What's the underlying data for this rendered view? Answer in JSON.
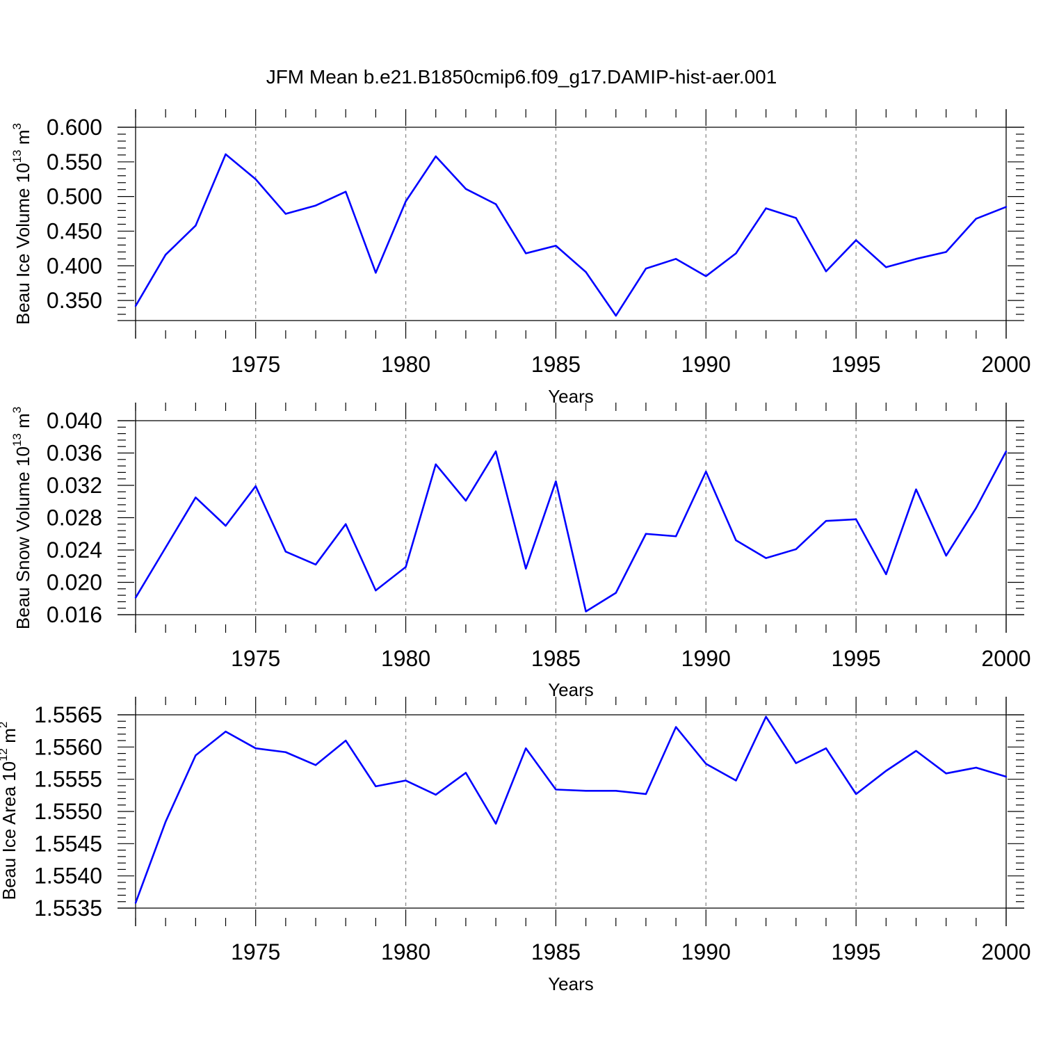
{
  "title": "JFM Mean b.e21.B1850cmip6.f09_g17.DAMIP-hist-aer.001",
  "colors": {
    "line": "#0000ff",
    "axis": "#000000",
    "grid": "#8c8c8c"
  },
  "chart_data": [
    {
      "type": "line",
      "ylabel": "Beau Ice Volume 10",
      "ylabel_exponent": "13",
      "ylabel_unit": " m",
      "ylabel_unit_exponent": "3",
      "xlabel": "Years",
      "xlim": [
        1971,
        2000
      ],
      "ylim": [
        0.321,
        0.6
      ],
      "yticks": [
        0.35,
        0.4,
        0.45,
        0.5,
        0.55,
        0.6
      ],
      "ytick_labels": [
        "0.350",
        "0.400",
        "0.450",
        "0.500",
        "0.550",
        "0.600"
      ],
      "xticks": [
        1975,
        1980,
        1985,
        1990,
        1995,
        2000
      ],
      "xtick_labels": [
        "1975",
        "1980",
        "1985",
        "1990",
        "1995",
        "2000"
      ],
      "grid": "vertical dashed at major x ticks",
      "x": [
        1971,
        1972,
        1973,
        1974,
        1975,
        1976,
        1977,
        1978,
        1979,
        1980,
        1981,
        1982,
        1983,
        1984,
        1985,
        1986,
        1987,
        1988,
        1989,
        1990,
        1991,
        1992,
        1993,
        1994,
        1995,
        1996,
        1997,
        1998,
        1999,
        2000
      ],
      "values": [
        0.342,
        0.416,
        0.458,
        0.561,
        0.525,
        0.475,
        0.487,
        0.507,
        0.39,
        0.493,
        0.558,
        0.511,
        0.489,
        0.418,
        0.429,
        0.391,
        0.328,
        0.396,
        0.41,
        0.385,
        0.418,
        0.483,
        0.469,
        0.392,
        0.437,
        0.398,
        0.41,
        0.42,
        0.468,
        0.485
      ]
    },
    {
      "type": "line",
      "ylabel": "Beau Snow Volume 10",
      "ylabel_exponent": "13",
      "ylabel_unit": " m",
      "ylabel_unit_exponent": "3",
      "xlabel": "Years",
      "xlim": [
        1971,
        2000
      ],
      "ylim": [
        0.016,
        0.04
      ],
      "yticks": [
        0.016,
        0.02,
        0.024,
        0.028,
        0.032,
        0.036,
        0.04
      ],
      "ytick_labels": [
        "0.016",
        "0.020",
        "0.024",
        "0.028",
        "0.032",
        "0.036",
        "0.040"
      ],
      "xticks": [
        1975,
        1980,
        1985,
        1990,
        1995,
        2000
      ],
      "xtick_labels": [
        "1975",
        "1980",
        "1985",
        "1990",
        "1995",
        "2000"
      ],
      "grid": "vertical dashed at major x ticks",
      "x": [
        1971,
        1972,
        1973,
        1974,
        1975,
        1976,
        1977,
        1978,
        1979,
        1980,
        1981,
        1982,
        1983,
        1984,
        1985,
        1986,
        1987,
        1988,
        1989,
        1990,
        1991,
        1992,
        1993,
        1994,
        1995,
        1996,
        1997,
        1998,
        1999,
        2000
      ],
      "values": [
        0.0181,
        0.0243,
        0.0305,
        0.027,
        0.0319,
        0.0238,
        0.0222,
        0.0272,
        0.019,
        0.0219,
        0.0346,
        0.0301,
        0.0362,
        0.0217,
        0.0325,
        0.0164,
        0.0187,
        0.026,
        0.0257,
        0.0337,
        0.0252,
        0.023,
        0.0241,
        0.0276,
        0.0278,
        0.021,
        0.0315,
        0.0233,
        0.0292,
        0.0362
      ]
    },
    {
      "type": "line",
      "ylabel": "Beau Ice Area 10",
      "ylabel_exponent": "12",
      "ylabel_unit": " m",
      "ylabel_unit_exponent": "2",
      "xlabel": "Years",
      "xlim": [
        1971,
        2000
      ],
      "ylim": [
        1.5535,
        1.5565
      ],
      "yticks": [
        1.5535,
        1.554,
        1.5545,
        1.555,
        1.5555,
        1.556,
        1.5565
      ],
      "ytick_labels": [
        "1.5535",
        "1.5540",
        "1.5545",
        "1.5550",
        "1.5555",
        "1.5560",
        "1.5565"
      ],
      "xticks": [
        1975,
        1980,
        1985,
        1990,
        1995,
        2000
      ],
      "xtick_labels": [
        "1975",
        "1980",
        "1985",
        "1990",
        "1995",
        "2000"
      ],
      "grid": "vertical dashed at major x ticks",
      "x": [
        1971,
        1972,
        1973,
        1974,
        1975,
        1976,
        1977,
        1978,
        1979,
        1980,
        1981,
        1982,
        1983,
        1984,
        1985,
        1986,
        1987,
        1988,
        1989,
        1990,
        1991,
        1992,
        1993,
        1994,
        1995,
        1996,
        1997,
        1998,
        1999,
        2000
      ],
      "values": [
        1.55358,
        1.55484,
        1.55587,
        1.55624,
        1.55598,
        1.55592,
        1.55572,
        1.5561,
        1.55539,
        1.55548,
        1.55526,
        1.5556,
        1.55481,
        1.55598,
        1.55534,
        1.55532,
        1.55532,
        1.55527,
        1.55631,
        1.55574,
        1.55548,
        1.55647,
        1.55575,
        1.55598,
        1.55527,
        1.55563,
        1.55594,
        1.55559,
        1.55568,
        1.55554
      ]
    }
  ]
}
